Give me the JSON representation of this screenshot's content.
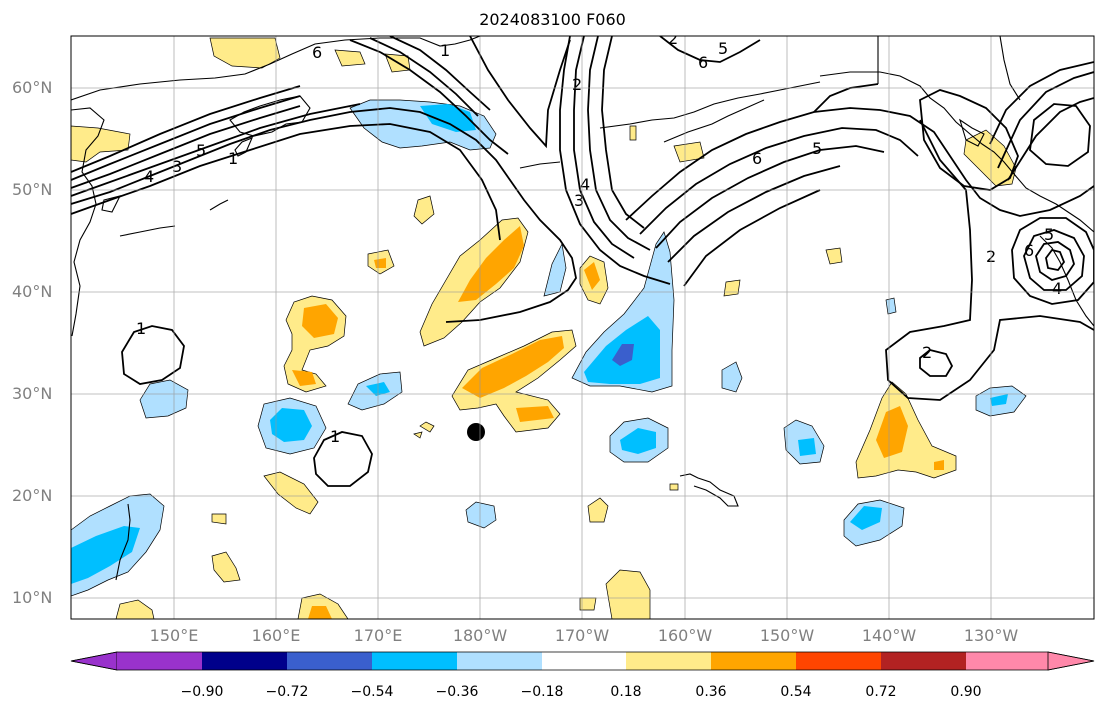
{
  "title": "2024083100 F060",
  "lat_labels": [
    "60°N",
    "50°N",
    "40°N",
    "30°N",
    "20°N",
    "10°N"
  ],
  "lon_labels": [
    "150°E",
    "160°E",
    "170°E",
    "180°W",
    "170°W",
    "160°W",
    "150°W",
    "140°W",
    "130°W"
  ],
  "colorbar": {
    "tick_labels": [
      "−0.90",
      "−0.72",
      "−0.54",
      "−0.36",
      "−0.18",
      "0.18",
      "0.36",
      "0.54",
      "0.72",
      "0.90"
    ],
    "colors": [
      "#9932cc",
      "#00008b",
      "#3a5fcd",
      "#00bfff",
      "#b0e0ff",
      "#ffffff",
      "#ffeb8a",
      "#ffa500",
      "#ff4500",
      "#b22222",
      "#ff88aa"
    ]
  },
  "contour_labels": [
    "6",
    "1",
    "5",
    "4",
    "3",
    "2",
    "6",
    "5",
    "2",
    "4",
    "3",
    "6",
    "5",
    "1",
    "6",
    "5",
    "4",
    "2",
    "1",
    "1",
    "2"
  ],
  "marker": "storm-center"
}
